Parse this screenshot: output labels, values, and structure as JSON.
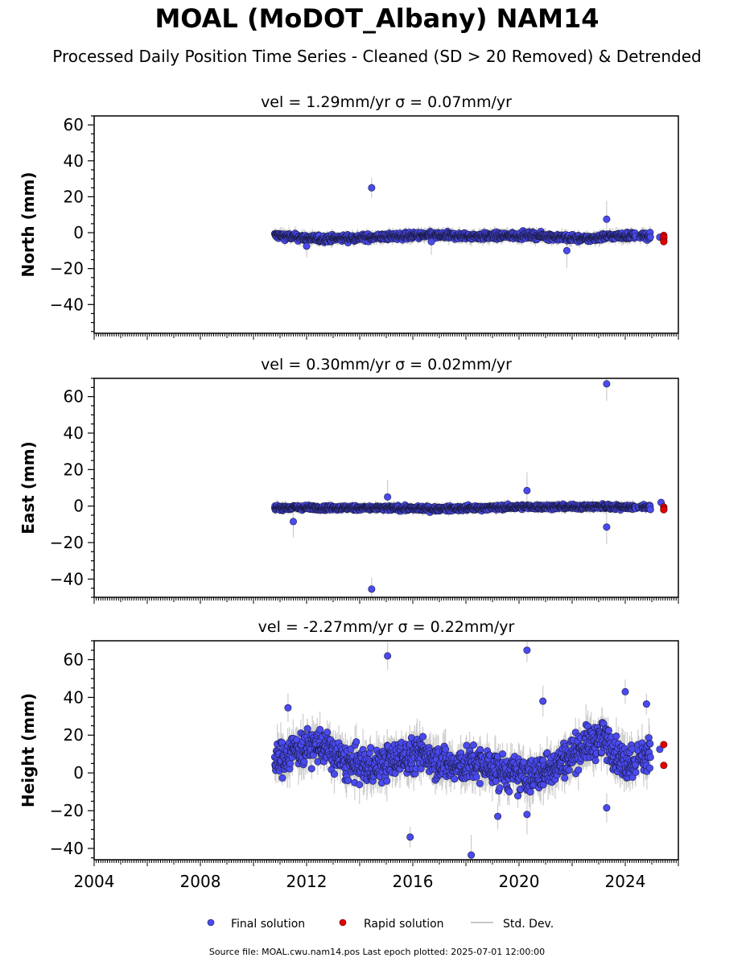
{
  "title": "MOAL (MoDOT_Albany) NAM14",
  "subtitle": "Processed Daily Position Time Series - Cleaned (SD > 20 Removed) & Detrended",
  "footer": "Source file: MOAL.cwu.nam14.pos  Last epoch plotted: 2025-07-01 12:00:00",
  "colors": {
    "final": "#4a4af0",
    "rapid": "#e00000",
    "stddev": "#c8c8c8"
  },
  "chart_data": [
    {
      "type": "scatter",
      "panel": "north",
      "title": "vel = 1.29mm/yr   σ = 0.07mm/yr",
      "ylabel": "North (mm)",
      "xlim": [
        2004.0,
        2026.0
      ],
      "ylim": [
        -56,
        65
      ],
      "yticks": [
        -40,
        -20,
        0,
        20,
        40,
        60
      ],
      "xtick_labels_visible": false,
      "baseline": [
        [
          2010.8,
          -1.5
        ],
        [
          2012.5,
          -3.5
        ],
        [
          2014.5,
          -2.5
        ],
        [
          2016.5,
          -1.5
        ],
        [
          2018.5,
          -2.0
        ],
        [
          2020.5,
          -1.5
        ],
        [
          2022.5,
          -3.5
        ],
        [
          2023.3,
          -2.0
        ],
        [
          2024.6,
          -1.5
        ],
        [
          2024.9,
          -2.5
        ]
      ],
      "noise": 1.3,
      "errband": 2.5,
      "outliers": [
        [
          2014.45,
          25
        ],
        [
          2023.3,
          7.5
        ],
        [
          2021.8,
          -10
        ],
        [
          2016.7,
          -5
        ],
        [
          2012.0,
          -7.5
        ]
      ],
      "rapid": [
        [
          2025.45,
          -1.5
        ],
        [
          2025.45,
          -4.5
        ],
        [
          2025.45,
          -3
        ],
        [
          2025.45,
          -2.5
        ],
        [
          2025.45,
          -5
        ]
      ],
      "final_tail": [
        [
          2025.3,
          -2.5
        ]
      ]
    },
    {
      "type": "scatter",
      "panel": "east",
      "title": "vel = 0.30mm/yr   σ = 0.02mm/yr",
      "ylabel": "East (mm)",
      "xlim": [
        2004.0,
        2026.0
      ],
      "ylim": [
        -50,
        70
      ],
      "yticks": [
        -40,
        -20,
        0,
        20,
        40,
        60
      ],
      "xtick_labels_visible": false,
      "baseline": [
        [
          2010.8,
          -0.8
        ],
        [
          2014.0,
          -1.0
        ],
        [
          2017.0,
          -1.5
        ],
        [
          2020.0,
          -0.5
        ],
        [
          2023.0,
          -0.3
        ],
        [
          2024.9,
          -0.5
        ]
      ],
      "noise": 0.9,
      "errband": 2.0,
      "outliers": [
        [
          2023.3,
          67
        ],
        [
          2014.45,
          -45.5
        ],
        [
          2015.05,
          5
        ],
        [
          2020.3,
          8.5
        ],
        [
          2023.3,
          -11.5
        ],
        [
          2011.5,
          -8.5
        ]
      ],
      "rapid": [
        [
          2025.45,
          -0.5
        ],
        [
          2025.45,
          -1.5
        ],
        [
          2025.45,
          -2
        ]
      ],
      "final_tail": [
        [
          2025.35,
          2
        ]
      ]
    },
    {
      "type": "scatter",
      "panel": "height",
      "title": "vel = -2.27mm/yr   σ = 0.22mm/yr",
      "ylabel": "Height (mm)",
      "xlim": [
        2004.0,
        2026.0
      ],
      "ylim": [
        -46,
        70
      ],
      "yticks": [
        -40,
        -20,
        0,
        20,
        40,
        60
      ],
      "xticks": [
        2004,
        2008,
        2012,
        2016,
        2020,
        2024
      ],
      "xtick_labels_visible": true,
      "baseline": [
        [
          2010.8,
          5
        ],
        [
          2011.5,
          12
        ],
        [
          2012.5,
          15
        ],
        [
          2013.5,
          5
        ],
        [
          2014.5,
          3
        ],
        [
          2015.5,
          8
        ],
        [
          2016.5,
          10
        ],
        [
          2017.5,
          3
        ],
        [
          2018.5,
          5
        ],
        [
          2019.5,
          0
        ],
        [
          2020.5,
          -2
        ],
        [
          2021.5,
          5
        ],
        [
          2022.5,
          15
        ],
        [
          2023.2,
          18
        ],
        [
          2024.0,
          5
        ],
        [
          2024.5,
          8
        ],
        [
          2024.9,
          10
        ]
      ],
      "noise": 6.5,
      "errband": 7,
      "outliers": [
        [
          2015.05,
          62
        ],
        [
          2020.3,
          65
        ],
        [
          2024.0,
          43
        ],
        [
          2020.9,
          38
        ],
        [
          2024.8,
          36.5
        ],
        [
          2011.3,
          34.5
        ],
        [
          2015.9,
          -34
        ],
        [
          2018.2,
          -43.5
        ],
        [
          2020.3,
          -22
        ],
        [
          2019.2,
          -23
        ],
        [
          2023.3,
          -18.5
        ]
      ],
      "rapid": [
        [
          2025.45,
          15
        ],
        [
          2025.45,
          4
        ]
      ],
      "final_tail": [
        [
          2025.3,
          12.5
        ]
      ]
    }
  ],
  "legend": {
    "final_label": "Final solution",
    "rapid_label": "Rapid solution",
    "stddev_label": "Std. Dev."
  }
}
